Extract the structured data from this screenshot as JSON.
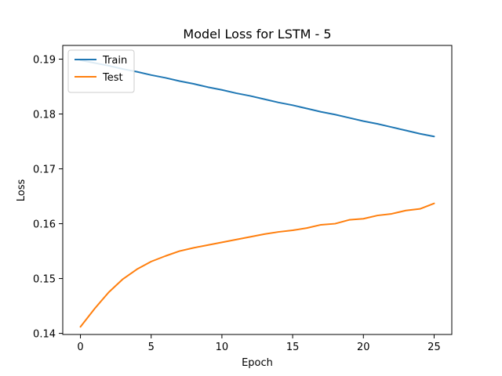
{
  "chart_data": {
    "type": "line",
    "title": "Model Loss for  LSTM - 5",
    "xlabel": "Epoch",
    "ylabel": "Loss",
    "xlim": [
      -1.25,
      26.25
    ],
    "ylim": [
      0.1398,
      0.1925
    ],
    "xticks": [
      0,
      5,
      10,
      15,
      20,
      25
    ],
    "yticks": [
      0.14,
      0.15,
      0.16,
      0.17,
      0.18,
      0.19
    ],
    "ytick_labels": [
      "0.14",
      "0.15",
      "0.16",
      "0.17",
      "0.18",
      "0.19"
    ],
    "grid": false,
    "legend_position": "upper-left",
    "x": [
      0,
      1,
      2,
      3,
      4,
      5,
      6,
      7,
      8,
      9,
      10,
      11,
      12,
      13,
      14,
      15,
      16,
      17,
      18,
      19,
      20,
      21,
      22,
      23,
      24,
      25
    ],
    "series": [
      {
        "name": "Train",
        "color": "#1f77b4",
        "values": [
          0.1898,
          0.1893,
          0.1888,
          0.1882,
          0.1877,
          0.1871,
          0.1866,
          0.186,
          0.1855,
          0.1849,
          0.1844,
          0.1838,
          0.1833,
          0.1827,
          0.1821,
          0.1816,
          0.181,
          0.1804,
          0.1799,
          0.1793,
          0.1787,
          0.1782,
          0.1776,
          0.177,
          0.1764,
          0.1759
        ]
      },
      {
        "name": "Test",
        "color": "#ff7f0e",
        "values": [
          0.1412,
          0.1445,
          0.1475,
          0.1499,
          0.1517,
          0.1531,
          0.1541,
          0.155,
          0.1556,
          0.1561,
          0.1566,
          0.1571,
          0.1576,
          0.1581,
          0.1585,
          0.1588,
          0.1592,
          0.1598,
          0.16,
          0.1607,
          0.1609,
          0.1615,
          0.1618,
          0.1624,
          0.1627,
          0.1637
        ]
      }
    ]
  }
}
